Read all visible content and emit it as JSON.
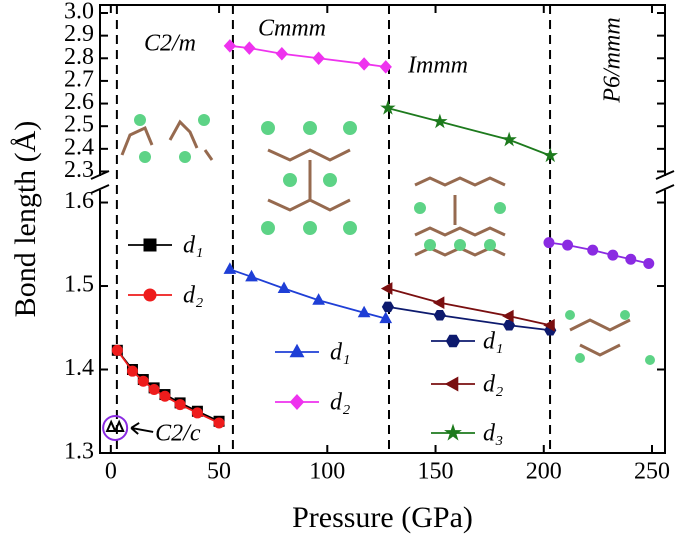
{
  "chart_data": {
    "type": "line",
    "x_label": "Pressure (GPa)",
    "y_label": "Bond length (Å)",
    "xlim": [
      -5,
      256
    ],
    "xticks": [
      0,
      50,
      100,
      150,
      200,
      250
    ],
    "ylim": [
      1.3,
      1.615
    ],
    "yticks": [
      1.3,
      1.4,
      1.5,
      1.6
    ],
    "y2lim": [
      2.28,
      3.0
    ],
    "y2ticks": [
      2.3,
      2.4,
      2.5,
      2.6,
      2.7,
      2.8,
      2.9,
      {
        "value": 3.0,
        "label": "3.0"
      }
    ],
    "phases": [
      {
        "label": "C2/m",
        "x": 2.8
      },
      {
        "label": "Cmmm",
        "x": 56.4
      },
      {
        "label": "Immm",
        "x": 128.5
      },
      {
        "label": "P6/mmm",
        "x": 202.9
      }
    ],
    "c2c": {
      "label": "C2/c",
      "x": 2,
      "y": 1.33
    },
    "series": [
      {
        "name": "d₁",
        "color": "#000000",
        "marker": "square",
        "x": [
          3,
          10,
          15,
          20,
          25,
          32,
          40,
          50
        ],
        "values": [
          1.423,
          1.4,
          1.388,
          1.378,
          1.37,
          1.36,
          1.35,
          1.338
        ]
      },
      {
        "name": "d₂",
        "color": "#ee1c1c",
        "marker": "circle",
        "x": [
          3,
          10,
          15,
          20,
          25,
          32,
          40,
          50
        ],
        "values": [
          1.423,
          1.398,
          1.386,
          1.376,
          1.368,
          1.358,
          1.348,
          1.336
        ]
      },
      {
        "name": "d₁",
        "color": "#1f3fd6",
        "marker": "triangle",
        "x": [
          55,
          65,
          80,
          96,
          117,
          127
        ],
        "values": [
          1.52,
          1.511,
          1.497,
          1.483,
          1.468,
          1.461
        ]
      },
      {
        "name": "d₂",
        "color": "#ee33ee",
        "marker": "diamond",
        "axis": "y2",
        "x": [
          55,
          64,
          79,
          96,
          117,
          127
        ],
        "values": [
          2.855,
          2.845,
          2.82,
          2.8,
          2.775,
          2.762
        ]
      },
      {
        "name": "d₁",
        "color": "#0d1a6e",
        "marker": "hexagon",
        "x": [
          128,
          152,
          184,
          203
        ],
        "values": [
          1.475,
          1.465,
          1.453,
          1.447
        ]
      },
      {
        "name": "d₂",
        "color": "#7a0f10",
        "marker": "lefttriangle",
        "x": [
          128,
          152,
          184,
          203
        ],
        "values": [
          1.497,
          1.48,
          1.464,
          1.453
        ]
      },
      {
        "name": "d₃",
        "color": "#1d7a1d",
        "marker": "star",
        "axis": "y2",
        "x": [
          128,
          152,
          184,
          203
        ],
        "values": [
          2.58,
          2.52,
          2.44,
          2.37
        ]
      },
      {
        "color": "#8a2be2",
        "marker": "circle",
        "x": [
          202.4,
          211,
          222.6,
          231.9,
          240.2,
          248.5
        ],
        "values": [
          1.552,
          1.549,
          1.543,
          1.537,
          1.532,
          1.527
        ]
      }
    ]
  }
}
